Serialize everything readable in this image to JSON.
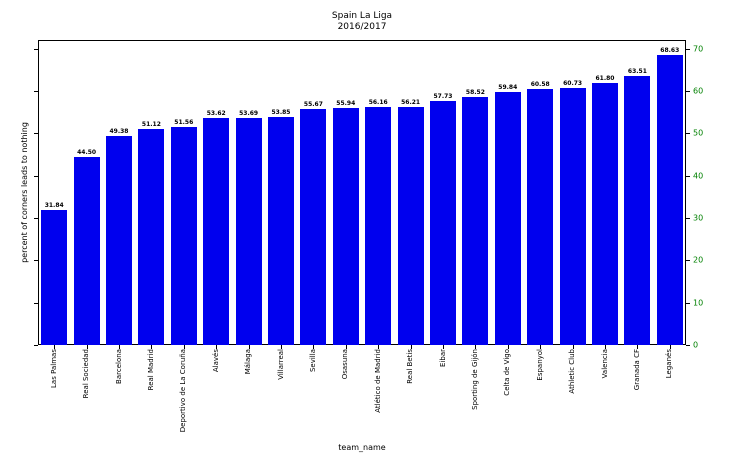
{
  "chart_data": {
    "type": "bar",
    "title": "Spain La Liga",
    "subtitle": "2016/2017",
    "xlabel": "team_name",
    "ylabel": "percent of corners leads to nothing",
    "categories": [
      "Las Palmas",
      "Real Sociedad",
      "Barcelona",
      "Real Madrid",
      "Deportivo de La Coruña",
      "Alavés",
      "Málaga",
      "Villarreal",
      "Sevilla",
      "Osasuna",
      "Atlético de Madrid",
      "Real Betis",
      "Eibar",
      "Sporting de Gijón",
      "Celta de Vigo",
      "Espanyol",
      "Athletic Club",
      "Valencia",
      "Granada CF",
      "Leganés"
    ],
    "values": [
      31.84,
      44.5,
      49.38,
      51.12,
      51.56,
      53.62,
      53.69,
      53.85,
      55.67,
      55.94,
      56.16,
      56.21,
      57.73,
      58.52,
      59.84,
      60.58,
      60.73,
      61.8,
      63.51,
      68.63
    ],
    "value_labels": [
      "31.84",
      "44.50",
      "49.38",
      "51.12",
      "51.56",
      "53.62",
      "53.69",
      "53.85",
      "55.67",
      "55.94",
      "56.16",
      "56.21",
      "57.73",
      "58.52",
      "59.84",
      "60.58",
      "60.73",
      "61.80",
      "63.51",
      "68.63"
    ],
    "ylim": [
      0,
      72.06
    ],
    "yticks": [
      0,
      10,
      20,
      30,
      40,
      50,
      60,
      70
    ],
    "ytick_side": "right",
    "grid": false,
    "legend": "none",
    "bar_color": "#0000ee",
    "ytick_label_color": "#008000"
  }
}
